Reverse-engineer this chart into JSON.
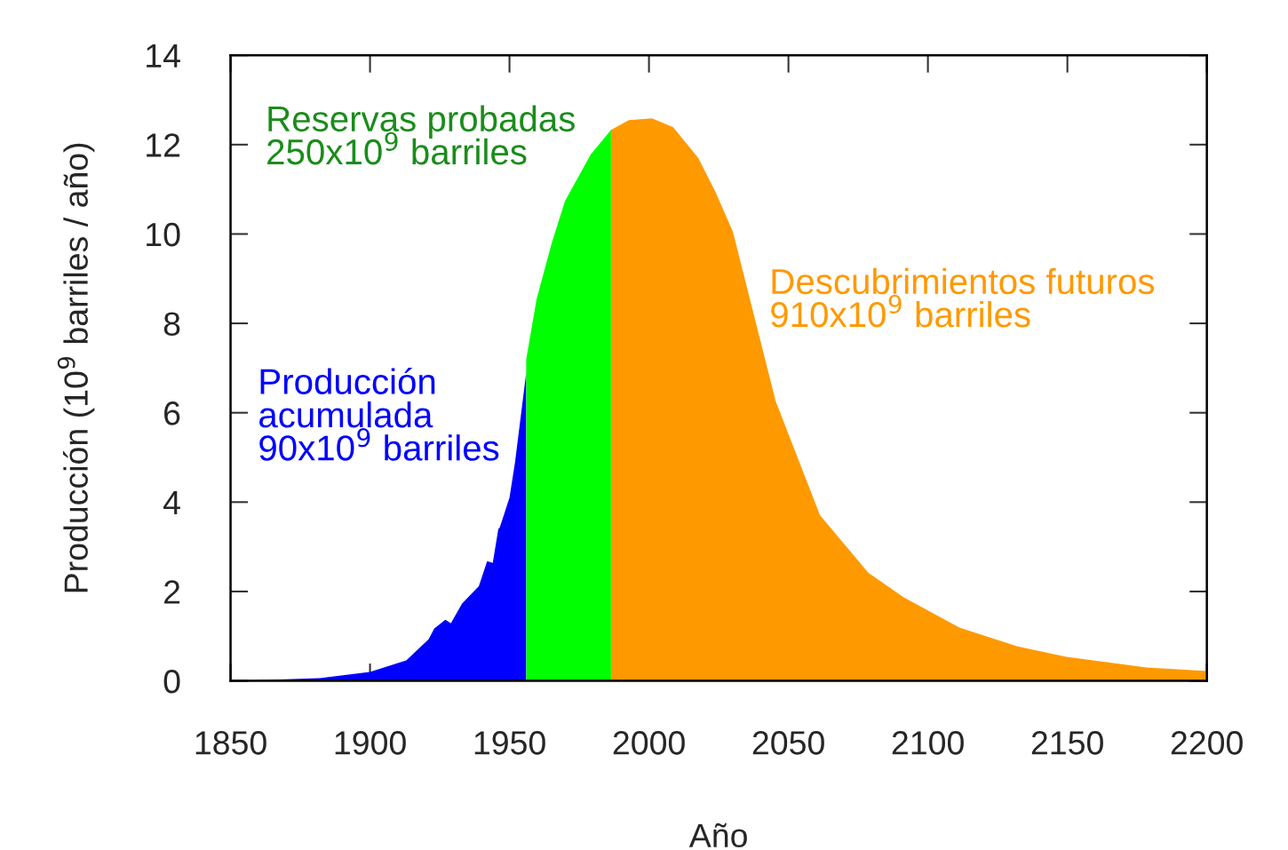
{
  "chart_data": {
    "type": "area",
    "xlabel": "Año",
    "ylabel": "Producción (10$^{9}$ barriles / año)",
    "xlim": [
      1850,
      2200
    ],
    "xticks": [
      1850,
      1900,
      1950,
      2000,
      2050,
      2100,
      2150,
      2200
    ],
    "ylim": [
      0,
      14
    ],
    "yticks": [
      0,
      2,
      4,
      6,
      8,
      10,
      12,
      14
    ],
    "grid": false,
    "annotations": [
      "Producción\nacumulada\n90x10$^{9}$ barriles",
      "Reservas probadas\n250x10$^{9}$ barriles",
      "Descubrimientos futuros\n910x10$^{9}$ barriles"
    ],
    "series": [
      {
        "color": "#0000ff",
        "x": [
          1850,
          1863,
          1882,
          1900,
          1913,
          1921,
          1923,
          1927,
          1929,
          1933,
          1939,
          1942,
          1944,
          1946,
          1946.5,
          1950,
          1952,
          1954,
          1956
        ],
        "values": [
          0,
          0.02,
          0.06,
          0.2,
          0.46,
          0.93,
          1.17,
          1.37,
          1.29,
          1.73,
          2.12,
          2.68,
          2.64,
          3.4,
          3.43,
          4.1,
          4.9,
          5.9,
          6.9
        ]
      },
      {
        "color": "#00ff00",
        "x": [
          1956,
          1959.7,
          1965.1,
          1969.9,
          1979.1,
          1986.4
        ],
        "values": [
          7.2,
          8.54,
          9.79,
          10.74,
          11.78,
          12.33
        ]
      },
      {
        "color": "#ff9900",
        "x": [
          1986.4,
          1992.8,
          2001.1,
          2008.7,
          2017.7,
          2024,
          2030.1,
          2045.4,
          2061.3,
          2078.6,
          2091.3,
          2111.4,
          2132.1,
          2149.6,
          2178.3,
          2200
        ],
        "values": [
          12.33,
          12.55,
          12.59,
          12.39,
          11.7,
          10.92,
          10.05,
          6.26,
          3.71,
          2.42,
          1.87,
          1.19,
          0.77,
          0.54,
          0.3,
          0.22
        ]
      }
    ]
  }
}
